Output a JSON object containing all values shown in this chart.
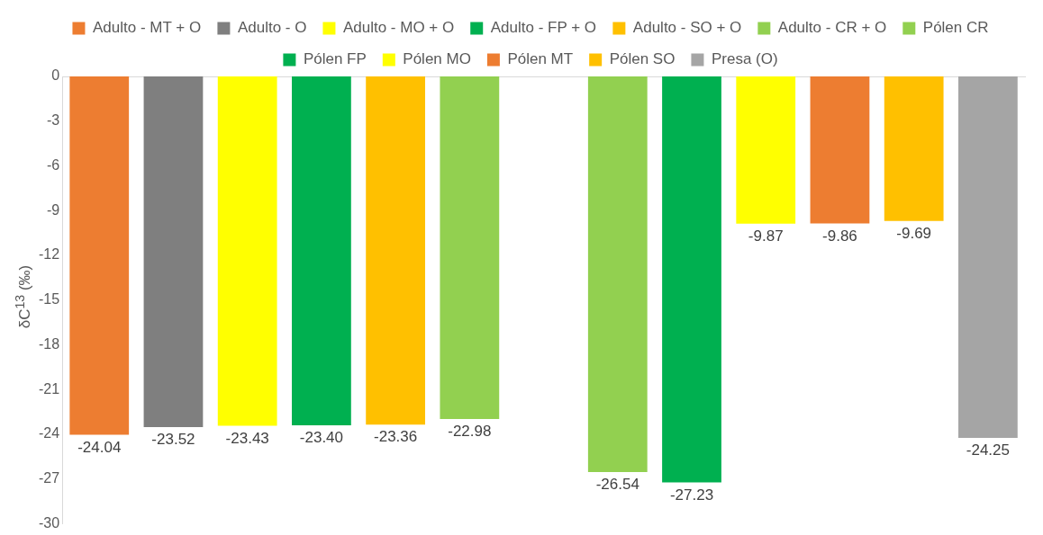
{
  "chart_data": {
    "type": "bar",
    "ylabel": "δC$^{13}$ (‰)",
    "categories": [
      null,
      null,
      null,
      null,
      null,
      null,
      null,
      null,
      null,
      null,
      null,
      null,
      null
    ],
    "series": [
      {
        "name": "Adulto - MT + O",
        "color": "#ed7d31",
        "values": [
          -24.04,
          null,
          null,
          null,
          null,
          null,
          null,
          null,
          null,
          null,
          null,
          null,
          null
        ],
        "value_labels": [
          "-24.04",
          null,
          null,
          null,
          null,
          null,
          null,
          null,
          null,
          null,
          null,
          null,
          null
        ]
      },
      {
        "name": "Adulto - O",
        "color": "#7f7f7f",
        "values": [
          null,
          -23.52,
          null,
          null,
          null,
          null,
          null,
          null,
          null,
          null,
          null,
          null,
          null
        ],
        "value_labels": [
          null,
          "-23.52",
          null,
          null,
          null,
          null,
          null,
          null,
          null,
          null,
          null,
          null,
          null
        ]
      },
      {
        "name": "Adulto - MO + O",
        "color": "#ffff00",
        "values": [
          null,
          null,
          -23.43,
          null,
          null,
          null,
          null,
          null,
          null,
          null,
          null,
          null,
          null
        ],
        "value_labels": [
          null,
          null,
          "-23.43",
          null,
          null,
          null,
          null,
          null,
          null,
          null,
          null,
          null,
          null
        ]
      },
      {
        "name": "Adulto - FP + O",
        "color": "#00b050",
        "values": [
          null,
          null,
          null,
          -23.4,
          null,
          null,
          null,
          null,
          null,
          null,
          null,
          null,
          null
        ],
        "value_labels": [
          null,
          null,
          null,
          "-23.40",
          null,
          null,
          null,
          null,
          null,
          null,
          null,
          null,
          null
        ]
      },
      {
        "name": "Adulto - SO + O",
        "color": "#ffc000",
        "values": [
          null,
          null,
          null,
          null,
          -23.36,
          null,
          null,
          null,
          null,
          null,
          null,
          null,
          null
        ],
        "value_labels": [
          null,
          null,
          null,
          null,
          "-23.36",
          null,
          null,
          null,
          null,
          null,
          null,
          null,
          null
        ]
      },
      {
        "name": "Adulto - CR + O",
        "color": "#92d050",
        "values": [
          null,
          null,
          null,
          null,
          null,
          -22.98,
          null,
          null,
          null,
          null,
          null,
          null,
          null
        ],
        "value_labels": [
          null,
          null,
          null,
          null,
          null,
          "-22.98",
          null,
          null,
          null,
          null,
          null,
          null,
          null
        ]
      },
      {
        "name": "Pólen CR",
        "color": "#92d050",
        "values": [
          null,
          null,
          null,
          null,
          null,
          null,
          null,
          -26.54,
          null,
          null,
          null,
          null,
          null
        ],
        "value_labels": [
          null,
          null,
          null,
          null,
          null,
          null,
          null,
          "-26.54",
          null,
          null,
          null,
          null,
          null
        ]
      },
      {
        "name": "Pólen FP",
        "color": "#00b050",
        "values": [
          null,
          null,
          null,
          null,
          null,
          null,
          null,
          null,
          -27.23,
          null,
          null,
          null,
          null
        ],
        "value_labels": [
          null,
          null,
          null,
          null,
          null,
          null,
          null,
          null,
          "-27.23",
          null,
          null,
          null,
          null
        ]
      },
      {
        "name": "Pólen MO",
        "color": "#ffff00",
        "values": [
          null,
          null,
          null,
          null,
          null,
          null,
          null,
          null,
          null,
          -9.87,
          null,
          null,
          null
        ],
        "value_labels": [
          null,
          null,
          null,
          null,
          null,
          null,
          null,
          null,
          null,
          "-9.87",
          null,
          null,
          null
        ]
      },
      {
        "name": "Pólen MT",
        "color": "#ed7d31",
        "values": [
          null,
          null,
          null,
          null,
          null,
          null,
          null,
          null,
          null,
          null,
          -9.86,
          null,
          null
        ],
        "value_labels": [
          null,
          null,
          null,
          null,
          null,
          null,
          null,
          null,
          null,
          null,
          "-9.86",
          null,
          null
        ]
      },
      {
        "name": "Pólen SO",
        "color": "#ffc000",
        "values": [
          null,
          null,
          null,
          null,
          null,
          null,
          null,
          null,
          null,
          null,
          null,
          -9.69,
          null
        ],
        "value_labels": [
          null,
          null,
          null,
          null,
          null,
          null,
          null,
          null,
          null,
          null,
          null,
          "-9.69",
          null
        ]
      },
      {
        "name": "Presa (O)",
        "color": "#a5a5a5",
        "values": [
          null,
          null,
          null,
          null,
          null,
          null,
          null,
          null,
          null,
          null,
          null,
          null,
          -24.25
        ],
        "value_labels": [
          null,
          null,
          null,
          null,
          null,
          null,
          null,
          null,
          null,
          null,
          null,
          null,
          "-24.25"
        ]
      }
    ],
    "ylim": [
      -30,
      0
    ],
    "yticks": [
      -30,
      -27,
      -24,
      -21,
      -18,
      -15,
      -12,
      -9,
      -6,
      -3,
      0
    ],
    "grid": false,
    "legend": "top"
  }
}
